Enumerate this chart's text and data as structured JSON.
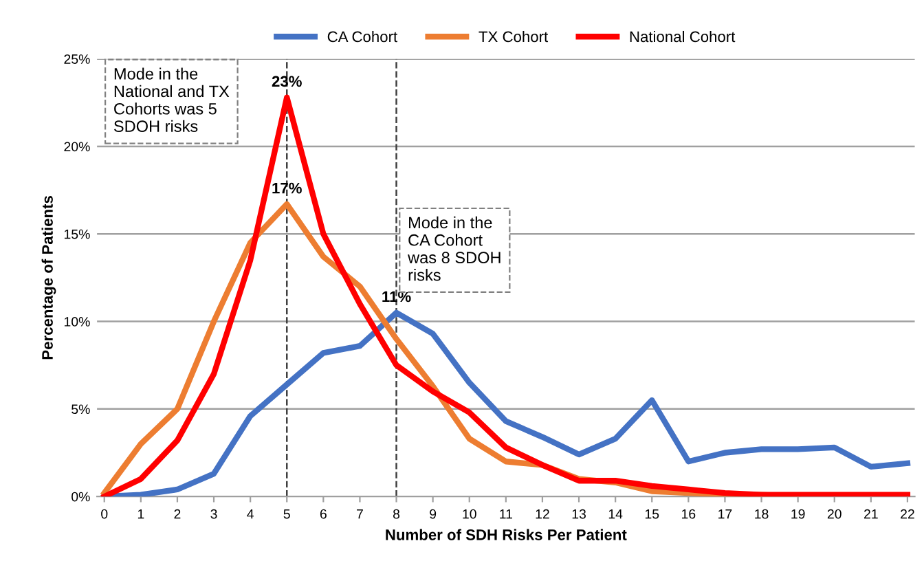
{
  "chart_data": {
    "type": "line",
    "xlabel": "Number of SDH Risks Per Patient",
    "ylabel": "Percentage of Patients",
    "x": [
      0,
      1,
      2,
      3,
      4,
      5,
      6,
      7,
      8,
      9,
      10,
      11,
      12,
      13,
      14,
      15,
      16,
      17,
      18,
      19,
      20,
      21,
      22
    ],
    "xlim": [
      -0.2,
      22.2
    ],
    "xticks": [
      0,
      1,
      2,
      3,
      4,
      5,
      6,
      7,
      8,
      9,
      10,
      11,
      12,
      13,
      14,
      15,
      16,
      17,
      18,
      19,
      20,
      21,
      22
    ],
    "ylim": [
      0,
      25
    ],
    "yticks": [
      {
        "value": 0,
        "label": "0%"
      },
      {
        "value": 5,
        "label": "5%"
      },
      {
        "value": 10,
        "label": "10%"
      },
      {
        "value": 15,
        "label": "15%"
      },
      {
        "value": 20,
        "label": "20%"
      },
      {
        "value": 25,
        "label": "25%"
      }
    ],
    "grid": "y",
    "legend": "top",
    "marker": "none",
    "line_style": "solid",
    "series": [
      {
        "name": "CA Cohort",
        "color": "#4472c4",
        "values": [
          0,
          0.1,
          0.4,
          1.3,
          4.6,
          6.4,
          8.2,
          8.6,
          10.5,
          9.3,
          6.5,
          4.3,
          3.4,
          2.4,
          3.3,
          5.5,
          2.0,
          2.5,
          2.7,
          2.7,
          2.8,
          1.7,
          1.9
        ],
        "value_labels": [
          null,
          null,
          null,
          null,
          null,
          null,
          null,
          null,
          "11%",
          null,
          null,
          null,
          null,
          null,
          null,
          null,
          null,
          null,
          null,
          null,
          null,
          null,
          null
        ]
      },
      {
        "name": "TX Cohort",
        "color": "#ed7d31",
        "values": [
          0.2,
          3,
          5,
          10,
          14.5,
          16.7,
          13.7,
          12,
          9,
          6.3,
          3.3,
          2,
          1.8,
          1,
          0.8,
          0.3,
          0.2,
          0.1,
          0.1,
          0,
          null,
          null,
          null
        ],
        "value_labels": [
          null,
          null,
          null,
          null,
          null,
          "17%",
          null,
          null,
          null,
          null,
          null,
          null,
          null,
          null,
          null,
          null,
          null,
          null,
          null,
          null,
          null,
          null,
          null
        ]
      },
      {
        "name": "National Cohort",
        "color": "#ff0000",
        "values": [
          0,
          1,
          3.2,
          7,
          13.5,
          22.8,
          15,
          11,
          7.5,
          6,
          4.8,
          2.8,
          1.8,
          0.9,
          0.9,
          0.6,
          0.4,
          0.2,
          0.1,
          0.1,
          0.1,
          0.1,
          0.1
        ],
        "value_labels": [
          null,
          null,
          null,
          null,
          null,
          "23%",
          null,
          null,
          null,
          null,
          null,
          null,
          null,
          null,
          null,
          null,
          null,
          null,
          null,
          null,
          null,
          null,
          null
        ]
      }
    ],
    "ref_lines": [
      {
        "axis": "x",
        "value": 5,
        "line_style": "dashed",
        "color": "#404040"
      },
      {
        "axis": "x",
        "value": 8,
        "line_style": "dashed",
        "color": "#404040"
      }
    ],
    "annotations": [
      "Mode in the\nNational and TX\nCohorts was 5\nSDOH risks",
      "Mode in the\nCA Cohort\nwas 8 SDOH\nrisks"
    ]
  }
}
